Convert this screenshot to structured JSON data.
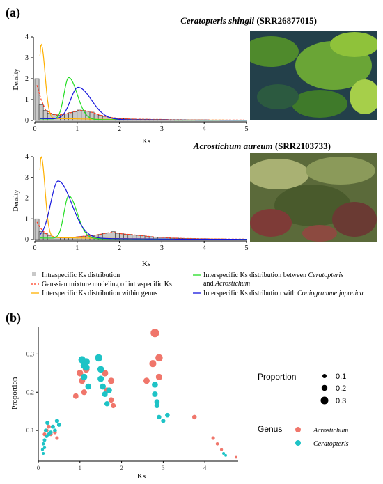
{
  "panel_a_label": "(a)",
  "panel_b_label": "(b)",
  "photos": {
    "top": {
      "subject": "Ceratopteris shingii fern photo",
      "colors": [
        "#1d3c44",
        "#4f8a2c",
        "#8fc23a",
        "#27495a"
      ]
    },
    "bottom": {
      "subject": "Acrostichum aureum fern photo",
      "colors": [
        "#5b6a3a",
        "#7e3b37",
        "#a9b173",
        "#495a2c"
      ]
    }
  },
  "legend_a": {
    "intraspecific": "Intraspecific Ks distribution",
    "gmm": "Gaussian mixture modeling of intraspecific Ks",
    "within_genus": "Interspecific Ks distribution within genus",
    "between_prefix": "Interspecific Ks distribution between ",
    "between_italic1": "Ceratopteris",
    "between_line2": "and ",
    "between_italic2": "Acrostichum",
    "conio_prefix": "Interspecific Ks distribution with ",
    "conio_italic": "Coniogramme japonica",
    "colors": {
      "hist": "#c8c8c8",
      "gmm": "#ff3b1f",
      "within": "#ffb000",
      "between": "#22dd22",
      "conio": "#1515dd"
    }
  },
  "legend_b": {
    "size_title": "Proportion",
    "size_values": [
      "0.1",
      "0.2",
      "0.3"
    ],
    "genus_title": "Genus",
    "genus_items": [
      "Acrostichum",
      "Ceratopteris"
    ],
    "colors": {
      "Acrostichum": "#f0766b",
      "Ceratopteris": "#1ec3c6"
    }
  },
  "chart_data": [
    {
      "type": "area",
      "title_italic": "Ceratopteris shingii",
      "title_rest": " (SRR26877015)",
      "xlabel": "Ks",
      "ylabel": "Density",
      "xlim": [
        0,
        5
      ],
      "ylim": [
        0,
        4
      ],
      "xticks": [
        "0",
        "1",
        "2",
        "3",
        "4",
        "5"
      ],
      "yticks": [
        "0",
        "1",
        "2",
        "3",
        "4"
      ],
      "hist_bin_width": 0.1,
      "histogram": [
        2.0,
        0.75,
        0.48,
        0.35,
        0.28,
        0.25,
        0.28,
        0.32,
        0.38,
        0.42,
        0.5,
        0.48,
        0.45,
        0.4,
        0.32,
        0.25,
        0.2,
        0.16,
        0.13,
        0.1,
        0.09,
        0.08,
        0.07,
        0.07,
        0.06,
        0.06,
        0.06,
        0.05,
        0.05,
        0.05,
        0.05,
        0.04,
        0.04,
        0.04,
        0.04,
        0.03,
        0.03,
        0.03,
        0.03,
        0.03,
        0.03,
        0.02,
        0.02,
        0.02,
        0.02,
        0.02,
        0.02,
        0.02,
        0.02,
        0.02
      ],
      "within_genus_peak": {
        "x": 0.15,
        "y": 3.55
      },
      "between_genera_peak": {
        "x": 0.8,
        "y": 2.0
      },
      "coniogramme_peak": {
        "x": 1.02,
        "y": 1.52
      }
    },
    {
      "type": "area",
      "title_italic": "Acrostichum aureum",
      "title_rest": " (SRR2103733)",
      "xlabel": "Ks",
      "ylabel": "Density",
      "xlim": [
        0,
        5
      ],
      "ylim": [
        0,
        4
      ],
      "xticks": [
        "0",
        "1",
        "2",
        "3",
        "4",
        "5"
      ],
      "yticks": [
        "0",
        "1",
        "2",
        "3",
        "4"
      ],
      "hist_bin_width": 0.1,
      "histogram": [
        1.0,
        0.38,
        0.3,
        0.2,
        0.12,
        0.1,
        0.08,
        0.08,
        0.1,
        0.12,
        0.14,
        0.16,
        0.18,
        0.2,
        0.22,
        0.25,
        0.3,
        0.32,
        0.38,
        0.3,
        0.28,
        0.25,
        0.25,
        0.22,
        0.2,
        0.18,
        0.16,
        0.14,
        0.12,
        0.1,
        0.1,
        0.08,
        0.07,
        0.07,
        0.06,
        0.05,
        0.05,
        0.05,
        0.04,
        0.04,
        0.04,
        0.03,
        0.03,
        0.03,
        0.03,
        0.02,
        0.02,
        0.02,
        0.02,
        0.02
      ],
      "within_genus_peak": {
        "x": 0.15,
        "y": 3.9
      },
      "between_genera_peak": {
        "x": 0.8,
        "y": 2.05
      },
      "coniogramme_peak": {
        "x": 0.55,
        "y": 2.75
      }
    },
    {
      "type": "scatter",
      "xlabel": "Ks",
      "ylabel": "Proportion",
      "xlim": [
        0,
        4.8
      ],
      "ylim": [
        0.02,
        0.37
      ],
      "xticks": [
        0,
        1,
        2,
        3,
        4
      ],
      "yticks": [
        0.1,
        0.2,
        0.3
      ],
      "series": [
        {
          "name": "Acrostichum",
          "points": [
            [
              0.15,
              0.09
            ],
            [
              0.2,
              0.1
            ],
            [
              0.25,
              0.11
            ],
            [
              0.3,
              0.09
            ],
            [
              0.4,
              0.095
            ],
            [
              0.45,
              0.08
            ],
            [
              0.9,
              0.19
            ],
            [
              1.0,
              0.25
            ],
            [
              1.05,
              0.23
            ],
            [
              1.1,
              0.2
            ],
            [
              1.15,
              0.26
            ],
            [
              1.6,
              0.25
            ],
            [
              1.65,
              0.205
            ],
            [
              1.75,
              0.23
            ],
            [
              1.75,
              0.18
            ],
            [
              1.8,
              0.165
            ],
            [
              2.6,
              0.23
            ],
            [
              2.75,
              0.275
            ],
            [
              2.8,
              0.355
            ],
            [
              2.9,
              0.29
            ],
            [
              2.9,
              0.24
            ],
            [
              3.75,
              0.135
            ],
            [
              4.2,
              0.08
            ],
            [
              4.3,
              0.065
            ],
            [
              4.4,
              0.05
            ],
            [
              4.75,
              0.03
            ]
          ]
        },
        {
          "name": "Ceratopteris",
          "points": [
            [
              0.1,
              0.05
            ],
            [
              0.12,
              0.04
            ],
            [
              0.12,
              0.065
            ],
            [
              0.15,
              0.075
            ],
            [
              0.15,
              0.055
            ],
            [
              0.18,
              0.1
            ],
            [
              0.2,
              0.085
            ],
            [
              0.22,
              0.12
            ],
            [
              0.25,
              0.09
            ],
            [
              0.3,
              0.095
            ],
            [
              0.35,
              0.11
            ],
            [
              0.4,
              0.1
            ],
            [
              0.45,
              0.125
            ],
            [
              0.5,
              0.115
            ],
            [
              1.05,
              0.285
            ],
            [
              1.1,
              0.27
            ],
            [
              1.1,
              0.24
            ],
            [
              1.15,
              0.28
            ],
            [
              1.15,
              0.265
            ],
            [
              1.2,
              0.215
            ],
            [
              1.45,
              0.29
            ],
            [
              1.5,
              0.26
            ],
            [
              1.5,
              0.235
            ],
            [
              1.55,
              0.215
            ],
            [
              1.6,
              0.195
            ],
            [
              1.65,
              0.17
            ],
            [
              1.7,
              0.205
            ],
            [
              2.8,
              0.22
            ],
            [
              2.8,
              0.195
            ],
            [
              2.85,
              0.175
            ],
            [
              2.85,
              0.165
            ],
            [
              2.9,
              0.135
            ],
            [
              3.0,
              0.125
            ],
            [
              3.1,
              0.14
            ],
            [
              4.45,
              0.04
            ],
            [
              4.5,
              0.035
            ]
          ]
        }
      ]
    }
  ]
}
